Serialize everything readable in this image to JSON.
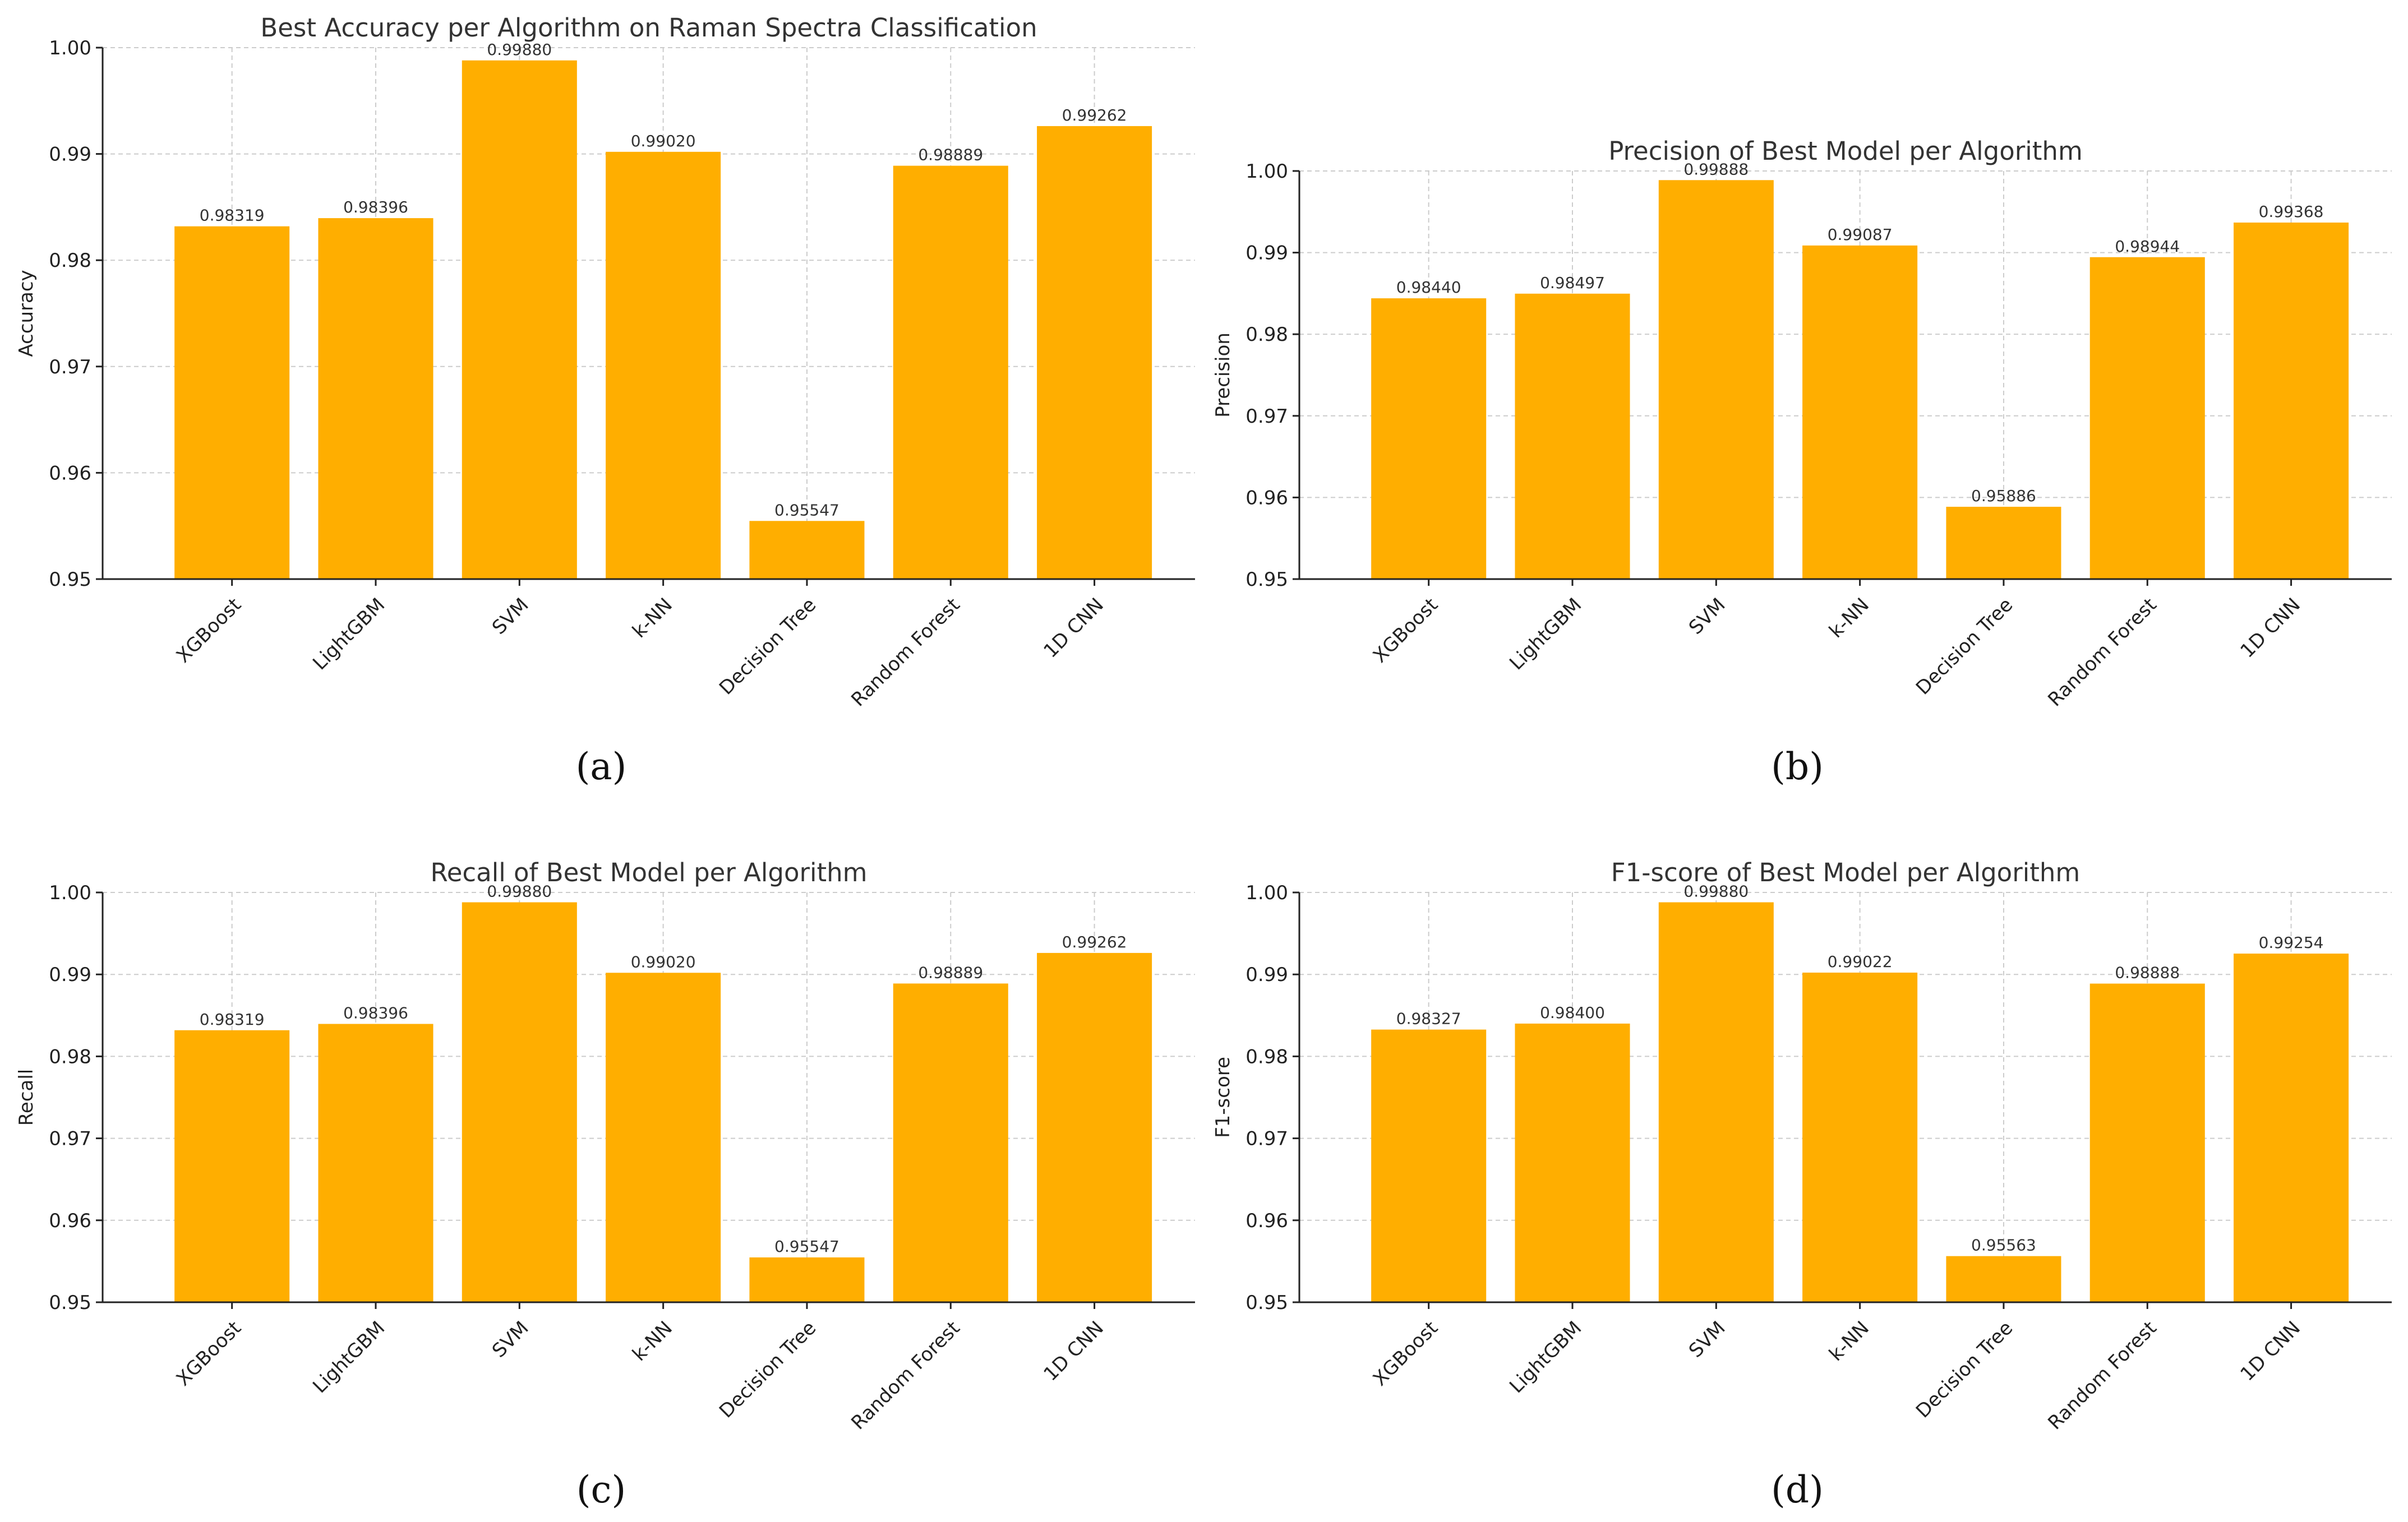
{
  "colors": {
    "bar": "#ffae00"
  },
  "chart_data": [
    {
      "type": "bar",
      "panel": "(a)",
      "title": "Best Accuracy per Algorithm on Raman Spectra Classification",
      "xlabel": "",
      "ylabel": "Accuracy",
      "ylim": [
        0.95,
        1.0
      ],
      "yticks": [
        0.95,
        0.96,
        0.97,
        0.98,
        0.99,
        1.0
      ],
      "ytick_labels": [
        "0.95",
        "0.96",
        "0.97",
        "0.98",
        "0.99",
        "1.00"
      ],
      "grid": true,
      "categories": [
        "XGBoost",
        "LightGBM",
        "SVM",
        "k-NN",
        "Decision Tree",
        "Random Forest",
        "1D CNN"
      ],
      "values": [
        0.98319,
        0.98396,
        0.9988,
        0.9902,
        0.95547,
        0.98889,
        0.99262
      ],
      "value_labels": [
        "0.98319",
        "0.98396",
        "0.99880",
        "0.99020",
        "0.95547",
        "0.98889",
        "0.99262"
      ]
    },
    {
      "type": "bar",
      "panel": "(b)",
      "title": "Precision of Best Model per Algorithm",
      "xlabel": "",
      "ylabel": "Precision",
      "ylim": [
        0.95,
        1.0
      ],
      "yticks": [
        0.95,
        0.96,
        0.97,
        0.98,
        0.99,
        1.0
      ],
      "ytick_labels": [
        "0.95",
        "0.96",
        "0.97",
        "0.98",
        "0.99",
        "1.00"
      ],
      "grid": true,
      "categories": [
        "XGBoost",
        "LightGBM",
        "SVM",
        "k-NN",
        "Decision Tree",
        "Random Forest",
        "1D CNN"
      ],
      "values": [
        0.9844,
        0.98497,
        0.99888,
        0.99087,
        0.95886,
        0.98944,
        0.99368
      ],
      "value_labels": [
        "0.98440",
        "0.98497",
        "0.99888",
        "0.99087",
        "0.95886",
        "0.98944",
        "0.99368"
      ]
    },
    {
      "type": "bar",
      "panel": "(c)",
      "title": "Recall of Best Model per Algorithm",
      "xlabel": "",
      "ylabel": "Recall",
      "ylim": [
        0.95,
        1.0
      ],
      "yticks": [
        0.95,
        0.96,
        0.97,
        0.98,
        0.99,
        1.0
      ],
      "ytick_labels": [
        "0.95",
        "0.96",
        "0.97",
        "0.98",
        "0.99",
        "1.00"
      ],
      "grid": true,
      "categories": [
        "XGBoost",
        "LightGBM",
        "SVM",
        "k-NN",
        "Decision Tree",
        "Random Forest",
        "1D CNN"
      ],
      "values": [
        0.98319,
        0.98396,
        0.9988,
        0.9902,
        0.95547,
        0.98889,
        0.99262
      ],
      "value_labels": [
        "0.98319",
        "0.98396",
        "0.99880",
        "0.99020",
        "0.95547",
        "0.98889",
        "0.99262"
      ]
    },
    {
      "type": "bar",
      "panel": "(d)",
      "title": "F1-score of Best Model per Algorithm",
      "xlabel": "",
      "ylabel": "F1-score",
      "ylim": [
        0.95,
        1.0
      ],
      "yticks": [
        0.95,
        0.96,
        0.97,
        0.98,
        0.99,
        1.0
      ],
      "ytick_labels": [
        "0.95",
        "0.96",
        "0.97",
        "0.98",
        "0.99",
        "1.00"
      ],
      "grid": true,
      "categories": [
        "XGBoost",
        "LightGBM",
        "SVM",
        "k-NN",
        "Decision Tree",
        "Random Forest",
        "1D CNN"
      ],
      "values": [
        0.98327,
        0.984,
        0.9988,
        0.99022,
        0.95563,
        0.98888,
        0.99254
      ],
      "value_labels": [
        "0.98327",
        "0.98400",
        "0.99880",
        "0.99022",
        "0.95563",
        "0.98888",
        "0.99254"
      ]
    }
  ]
}
